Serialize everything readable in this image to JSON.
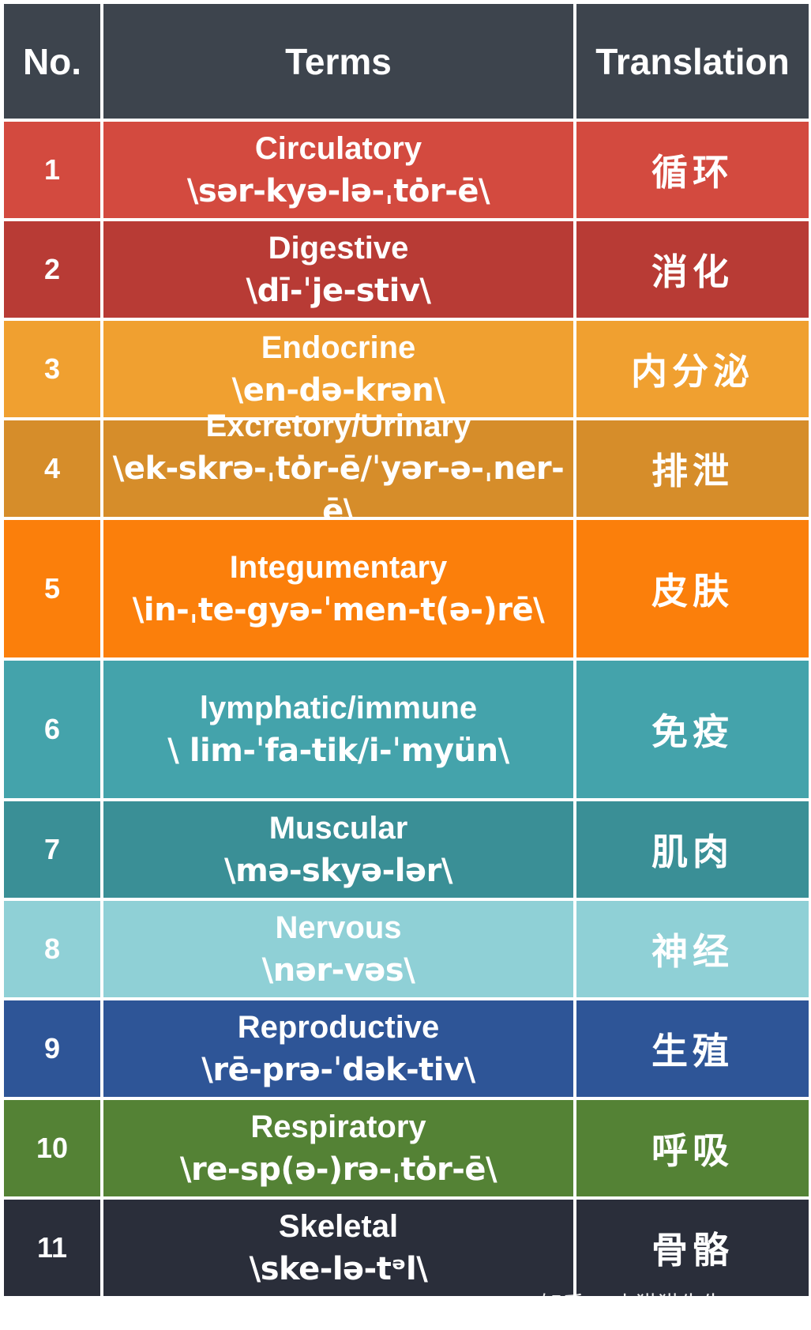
{
  "headers": {
    "no": "No.",
    "terms": "Terms",
    "translation": "Translation"
  },
  "rows": [
    {
      "no": "1",
      "term": "Circulatory",
      "pron": "\\sər-kyə-lə-ˌtȯr-ē\\",
      "translation": "循环",
      "color": "#d34a3f"
    },
    {
      "no": "2",
      "term": "Digestive",
      "pron": "\\dī-ˈje-stiv\\",
      "translation": "消化",
      "color": "#b83b35"
    },
    {
      "no": "3",
      "term": "Endocrine",
      "pron": "\\en-də-krən\\",
      "translation": "内分泌",
      "color": "#f0a030"
    },
    {
      "no": "4",
      "term": "Excretory/Urinary",
      "pron": "\\ek-skrə-ˌtȯr-ē/ˈyər-ə-ˌner-ē\\",
      "translation": "排泄",
      "color": "#d68d2a"
    },
    {
      "no": "5",
      "term": "Integumentary",
      "pron": "\\in-ˌte-gyə-ˈmen-t(ə-)rē\\",
      "translation": "皮肤",
      "color": "#fb7f0b"
    },
    {
      "no": "6",
      "term": "lymphatic/immune",
      "pron": "\\ lim-ˈfa-tik/i-ˈmyün\\",
      "translation": "免疫",
      "color": "#44a3ab"
    },
    {
      "no": "7",
      "term": "Muscular",
      "pron": "\\mə-skyə-lər\\",
      "translation": "肌肉",
      "color": "#3a8f96"
    },
    {
      "no": "8",
      "term": "Nervous",
      "pron": "\\nər-vəs\\",
      "translation": "神经",
      "color": "#8fd0d6"
    },
    {
      "no": "9",
      "term": "Reproductive",
      "pron": "\\rē-prə-ˈdək-tiv\\",
      "translation": "生殖",
      "color": "#2e5597"
    },
    {
      "no": "10",
      "term": "Respiratory",
      "pron": "\\re-sp(ə-)rə-ˌtȯr-ē\\",
      "translation": "呼吸",
      "color": "#548235"
    },
    {
      "no": "11",
      "term": "Skeletal",
      "pron": "\\ske-lə-tᵊl\\",
      "translation": "骨骼",
      "color": "#2a2e3a"
    }
  ],
  "watermark": "知乎 @小猫猫先生"
}
